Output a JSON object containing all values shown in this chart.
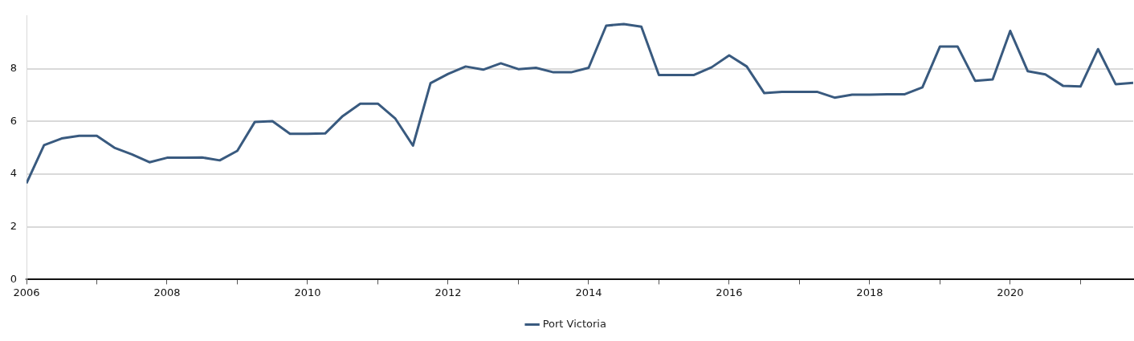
{
  "chart_data": {
    "type": "line",
    "x": [
      2006,
      2006.25,
      2006.5,
      2006.75,
      2007,
      2007.25,
      2007.5,
      2007.75,
      2008,
      2008.25,
      2008.5,
      2008.75,
      2009,
      2009.25,
      2009.5,
      2009.75,
      2010,
      2010.25,
      2010.5,
      2010.75,
      2011,
      2011.25,
      2011.5,
      2011.75,
      2012,
      2012.25,
      2012.5,
      2012.75,
      2013,
      2013.25,
      2013.5,
      2013.75,
      2014,
      2014.25,
      2014.5,
      2014.75,
      2015,
      2015.25,
      2015.5,
      2015.75,
      2016,
      2016.25,
      2016.5,
      2016.75,
      2017,
      2017.25,
      2017.5,
      2017.75,
      2018,
      2018.25,
      2018.5,
      2018.75,
      2019,
      2019.25,
      2019.5,
      2019.75,
      2020,
      2020.25,
      2020.5,
      2020.75,
      2021,
      2021.25,
      2021.5,
      2021.75
    ],
    "series": [
      {
        "name": "Port Victoria",
        "color": "#395a7f",
        "values": [
          3.65,
          5.1,
          5.35,
          5.45,
          5.45,
          5.0,
          4.75,
          4.45,
          4.62,
          4.62,
          4.63,
          4.52,
          4.88,
          5.98,
          6.01,
          5.53,
          5.53,
          5.54,
          6.2,
          6.67,
          6.67,
          6.1,
          5.08,
          7.45,
          7.8,
          8.08,
          7.96,
          8.2,
          7.98,
          8.03,
          7.86,
          7.86,
          8.03,
          9.63,
          9.69,
          9.59,
          7.76,
          7.76,
          7.76,
          8.05,
          8.5,
          8.08,
          7.07,
          7.12,
          7.12,
          7.12,
          6.9,
          7.01,
          7.01,
          7.03,
          7.03,
          7.29,
          8.84,
          8.84,
          7.54,
          7.59,
          9.43,
          7.9,
          7.78,
          7.35,
          7.32,
          8.74,
          7.41,
          7.46
        ]
      }
    ],
    "xlim": [
      2006,
      2021.75
    ],
    "xticks": [
      2006,
      {
        "value": 2007,
        "label": null
      },
      2008,
      {
        "value": 2009,
        "label": null
      },
      2010,
      {
        "value": 2011,
        "label": null
      },
      2012,
      {
        "value": 2013,
        "label": null
      },
      2014,
      {
        "value": 2015,
        "label": null
      },
      2016,
      {
        "value": 2017,
        "label": null
      },
      2018,
      {
        "value": 2019,
        "label": null
      },
      2020,
      {
        "value": 2021,
        "label": null
      }
    ],
    "ylim": [
      0,
      10
    ],
    "yticks": [
      0,
      2,
      4,
      6,
      8
    ],
    "grid": "y",
    "legend": "bottom",
    "marker": "none",
    "line_style": "solid"
  }
}
